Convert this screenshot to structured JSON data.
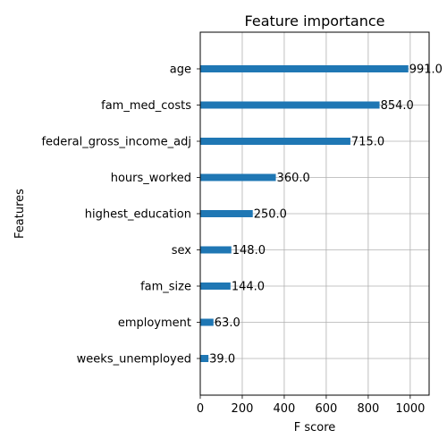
{
  "chart_data": {
    "type": "bar",
    "orientation": "horizontal",
    "title": "Feature importance",
    "xlabel": "F score",
    "ylabel": "Features",
    "xlim": [
      0,
      1090
    ],
    "xticks": [
      0,
      200,
      400,
      600,
      800,
      1000
    ],
    "grid": true,
    "bar_color": "#1f77b4",
    "categories": [
      "age",
      "fam_med_costs",
      "federal_gross_income_adj",
      "hours_worked",
      "highest_education",
      "sex",
      "fam_size",
      "employment",
      "weeks_unemployed"
    ],
    "values": [
      991,
      854,
      715,
      360,
      250,
      148,
      144,
      63,
      39
    ],
    "data_labels": [
      "991.0",
      "854.0",
      "715.0",
      "360.0",
      "250.0",
      "148.0",
      "144.0",
      "63.0",
      "39.0"
    ]
  }
}
